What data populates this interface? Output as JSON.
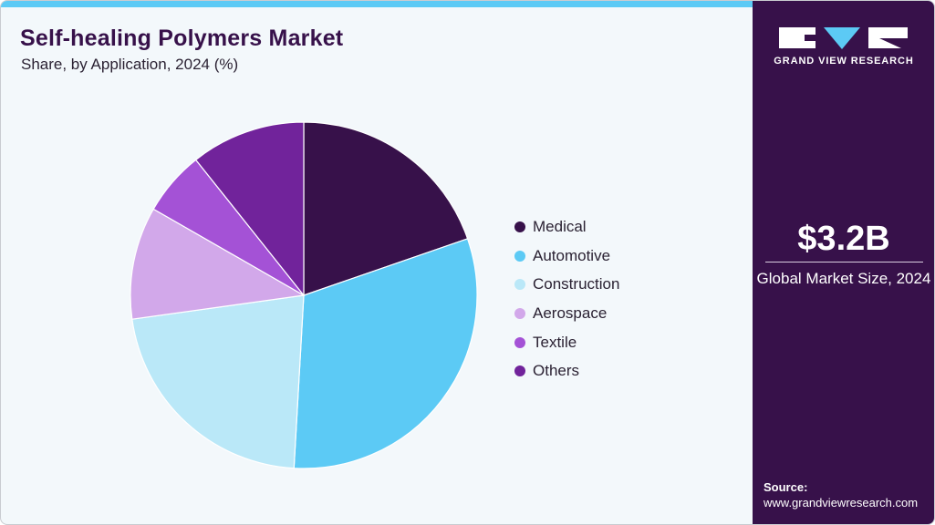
{
  "header": {
    "title": "Self-healing Polymers Market",
    "subtitle": "Share, by Application, 2024 (%)"
  },
  "brand": {
    "name": "GRAND VIEW RESEARCH",
    "accent_color": "#5ccaf5",
    "panel_color": "#37114a"
  },
  "summary": {
    "value": "$3.2B",
    "label": "Global Market Size, 2024"
  },
  "source": {
    "label": "Source:",
    "url": "www.grandviewresearch.com"
  },
  "legend": [
    {
      "label": "Medical",
      "color": "#37114a"
    },
    {
      "label": "Automotive",
      "color": "#5ccaf5"
    },
    {
      "label": "Construction",
      "color": "#bae8f8"
    },
    {
      "label": "Aerospace",
      "color": "#d2a8ea"
    },
    {
      "label": "Textile",
      "color": "#a452d6"
    },
    {
      "label": "Others",
      "color": "#71239b"
    }
  ],
  "chart_data": {
    "type": "pie",
    "title": "Self-healing Polymers Market",
    "subtitle": "Share, by Application, 2024 (%)",
    "categories": [
      "Medical",
      "Automotive",
      "Construction",
      "Aerospace",
      "Textile",
      "Others"
    ],
    "values": [
      19.7,
      31.2,
      21.9,
      10.5,
      6.0,
      10.7
    ],
    "colors": [
      "#37114a",
      "#5ccaf5",
      "#bae8f8",
      "#d2a8ea",
      "#a452d6",
      "#71239b"
    ],
    "start_angle": "12 o'clock, clockwise",
    "legend_position": "right",
    "data_labels": false
  }
}
